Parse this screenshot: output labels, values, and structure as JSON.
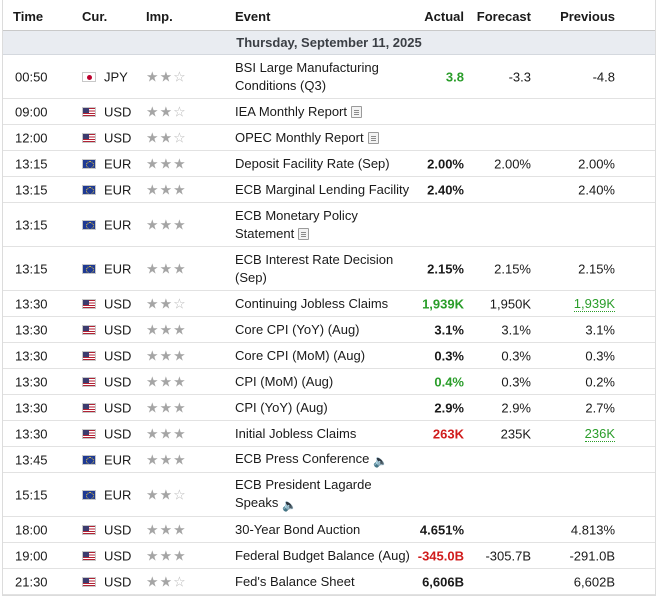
{
  "columns": {
    "time": "Time",
    "currency": "Cur.",
    "importance": "Imp.",
    "event": "Event",
    "actual": "Actual",
    "forecast": "Forecast",
    "previous": "Previous"
  },
  "day_header": "Thursday, September 11, 2025",
  "colors": {
    "positive": "#2a9d2a",
    "negative": "#d01c1c",
    "day_bg": "#e9ecf1"
  },
  "rows": [
    {
      "time": "00:50",
      "currency": "JPY",
      "flag": "japan-flag",
      "stars": 2,
      "event": "BSI Large Manufacturing Conditions (Q3)",
      "actual": "3.8",
      "actual_color": "green",
      "forecast": "-3.3",
      "previous": "-4.8",
      "icon": ""
    },
    {
      "time": "09:00",
      "currency": "USD",
      "flag": "us-flag",
      "stars": 2,
      "event": "IEA Monthly Report",
      "actual": "",
      "forecast": "",
      "previous": "",
      "icon": "report-icon"
    },
    {
      "time": "12:00",
      "currency": "USD",
      "flag": "us-flag",
      "stars": 2,
      "event": "OPEC Monthly Report",
      "actual": "",
      "forecast": "",
      "previous": "",
      "icon": "report-icon"
    },
    {
      "time": "13:15",
      "currency": "EUR",
      "flag": "eu-flag",
      "stars": 3,
      "event": "Deposit Facility Rate (Sep)",
      "actual": "2.00%",
      "forecast": "2.00%",
      "previous": "2.00%",
      "icon": ""
    },
    {
      "time": "13:15",
      "currency": "EUR",
      "flag": "eu-flag",
      "stars": 3,
      "event": "ECB Marginal Lending Facility",
      "actual": "2.40%",
      "forecast": "",
      "previous": "2.40%",
      "icon": ""
    },
    {
      "time": "13:15",
      "currency": "EUR",
      "flag": "eu-flag",
      "stars": 3,
      "event": "ECB Monetary Policy Statement",
      "actual": "",
      "forecast": "",
      "previous": "",
      "icon": "report-icon"
    },
    {
      "time": "13:15",
      "currency": "EUR",
      "flag": "eu-flag",
      "stars": 3,
      "event": "ECB Interest Rate Decision (Sep)",
      "actual": "2.15%",
      "forecast": "2.15%",
      "previous": "2.15%",
      "icon": ""
    },
    {
      "time": "13:30",
      "currency": "USD",
      "flag": "us-flag",
      "stars": 2,
      "event": "Continuing Jobless Claims",
      "actual": "1,939K",
      "actual_color": "green",
      "forecast": "1,950K",
      "previous": "1,939K",
      "previous_color": "green",
      "icon": ""
    },
    {
      "time": "13:30",
      "currency": "USD",
      "flag": "us-flag",
      "stars": 3,
      "event": "Core CPI (YoY) (Aug)",
      "actual": "3.1%",
      "forecast": "3.1%",
      "previous": "3.1%",
      "icon": ""
    },
    {
      "time": "13:30",
      "currency": "USD",
      "flag": "us-flag",
      "stars": 3,
      "event": "Core CPI (MoM) (Aug)",
      "actual": "0.3%",
      "forecast": "0.3%",
      "previous": "0.3%",
      "icon": ""
    },
    {
      "time": "13:30",
      "currency": "USD",
      "flag": "us-flag",
      "stars": 3,
      "event": "CPI (MoM) (Aug)",
      "actual": "0.4%",
      "actual_color": "green",
      "forecast": "0.3%",
      "previous": "0.2%",
      "icon": ""
    },
    {
      "time": "13:30",
      "currency": "USD",
      "flag": "us-flag",
      "stars": 3,
      "event": "CPI (YoY) (Aug)",
      "actual": "2.9%",
      "forecast": "2.9%",
      "previous": "2.7%",
      "icon": ""
    },
    {
      "time": "13:30",
      "currency": "USD",
      "flag": "us-flag",
      "stars": 3,
      "event": "Initial Jobless Claims",
      "actual": "263K",
      "actual_color": "red",
      "forecast": "235K",
      "previous": "236K",
      "previous_color": "green",
      "icon": ""
    },
    {
      "time": "13:45",
      "currency": "EUR",
      "flag": "eu-flag",
      "stars": 3,
      "event": "ECB Press Conference",
      "actual": "",
      "forecast": "",
      "previous": "",
      "icon": "speaker-icon"
    },
    {
      "time": "15:15",
      "currency": "EUR",
      "flag": "eu-flag",
      "stars": 2,
      "event": "ECB President Lagarde Speaks",
      "actual": "",
      "forecast": "",
      "previous": "",
      "icon": "speaker-icon"
    },
    {
      "time": "18:00",
      "currency": "USD",
      "flag": "us-flag",
      "stars": 3,
      "event": "30-Year Bond Auction",
      "actual": "4.651%",
      "forecast": "",
      "previous": "4.813%",
      "icon": ""
    },
    {
      "time": "19:00",
      "currency": "USD",
      "flag": "us-flag",
      "stars": 3,
      "event": "Federal Budget Balance (Aug)",
      "actual": "-345.0B",
      "actual_color": "red",
      "forecast": "-305.7B",
      "previous": "-291.0B",
      "icon": ""
    },
    {
      "time": "21:30",
      "currency": "USD",
      "flag": "us-flag",
      "stars": 2,
      "event": "Fed's Balance Sheet",
      "actual": "6,606B",
      "forecast": "",
      "previous": "6,602B",
      "icon": ""
    }
  ]
}
